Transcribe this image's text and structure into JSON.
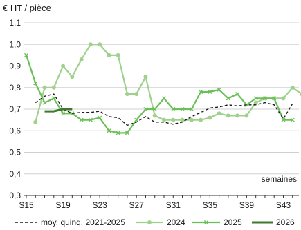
{
  "chart_data": {
    "type": "line",
    "ylabel": "€ HT / pièce",
    "xlabel": "semaines",
    "ylim": [
      0.3,
      1.1
    ],
    "yticks": [
      0.3,
      0.4,
      0.5,
      0.6,
      0.7,
      0.8,
      0.9,
      1.0,
      1.1
    ],
    "ytick_labels": [
      "0,3",
      "0,4",
      "0,5",
      "0,6",
      "0,7",
      "0,8",
      "0,9",
      "1,0",
      "1,1"
    ],
    "x_weeks": [
      15,
      16,
      17,
      18,
      19,
      20,
      21,
      22,
      23,
      24,
      25,
      26,
      27,
      28,
      29,
      30,
      31,
      32,
      33,
      34,
      35,
      36,
      37,
      38,
      39,
      40,
      41,
      42,
      43,
      44,
      45
    ],
    "xtick_weeks": [
      15,
      19,
      23,
      27,
      31,
      35,
      39,
      43
    ],
    "xtick_labels": [
      "S15",
      "S19",
      "S23",
      "S27",
      "S31",
      "S35",
      "S39",
      "S43"
    ],
    "grid": "horizontal",
    "legend_position": "bottom",
    "series": [
      {
        "name": "moy. quinq. 2021-2025",
        "color": "#1a1a1a",
        "style": "dashed",
        "x": [
          16,
          17,
          18,
          19,
          20,
          21,
          22,
          23,
          24,
          25,
          26,
          27,
          28,
          29,
          30,
          31,
          32,
          33,
          34,
          35,
          36,
          37,
          38,
          39,
          40,
          41,
          42,
          43,
          44
        ],
        "values": [
          0.73,
          0.76,
          0.77,
          0.7,
          0.68,
          0.685,
          0.685,
          0.69,
          0.665,
          0.66,
          0.625,
          0.64,
          0.665,
          0.64,
          0.64,
          0.63,
          0.64,
          0.665,
          0.685,
          0.705,
          0.71,
          0.72,
          0.715,
          0.72,
          0.72,
          0.73,
          0.72,
          0.655,
          0.725
        ]
      },
      {
        "name": "2024",
        "color": "#9fd18c",
        "style": "solid",
        "marker": "circle",
        "x": [
          16,
          17,
          18,
          19,
          20,
          21,
          22,
          23,
          24,
          25,
          26,
          27,
          28,
          29,
          30,
          31,
          32,
          33,
          34,
          35,
          36,
          37,
          38,
          39,
          40,
          41,
          42,
          43,
          44,
          45
        ],
        "values": [
          0.64,
          0.8,
          0.8,
          0.9,
          0.85,
          0.93,
          1.0,
          1.0,
          0.95,
          0.95,
          0.77,
          0.77,
          0.85,
          0.67,
          0.65,
          0.65,
          0.65,
          0.65,
          0.65,
          0.66,
          0.68,
          0.67,
          0.67,
          0.67,
          0.73,
          0.75,
          0.75,
          0.75,
          0.8,
          0.77
        ]
      },
      {
        "name": "2025",
        "color": "#6bbf59",
        "style": "solid",
        "marker": "cross",
        "x": [
          15,
          16,
          17,
          18,
          19,
          20,
          21,
          22,
          23,
          24,
          25,
          26,
          27,
          28,
          29,
          30,
          31,
          32,
          33,
          34,
          35,
          36,
          37,
          38,
          39,
          40,
          41,
          42,
          43,
          44
        ],
        "values": [
          0.95,
          0.82,
          0.73,
          0.75,
          0.68,
          0.68,
          0.65,
          0.65,
          0.66,
          0.6,
          0.59,
          0.59,
          0.65,
          0.7,
          0.7,
          0.75,
          0.7,
          0.7,
          0.7,
          0.78,
          0.78,
          0.79,
          0.75,
          0.77,
          0.72,
          0.75,
          0.75,
          0.75,
          0.65,
          0.65
        ]
      },
      {
        "name": "2026",
        "color": "#3d7a2e",
        "style": "solid",
        "marker": "none",
        "x": [
          17,
          18,
          19,
          20
        ],
        "values": [
          0.69,
          0.69,
          0.7,
          0.7
        ]
      }
    ]
  }
}
